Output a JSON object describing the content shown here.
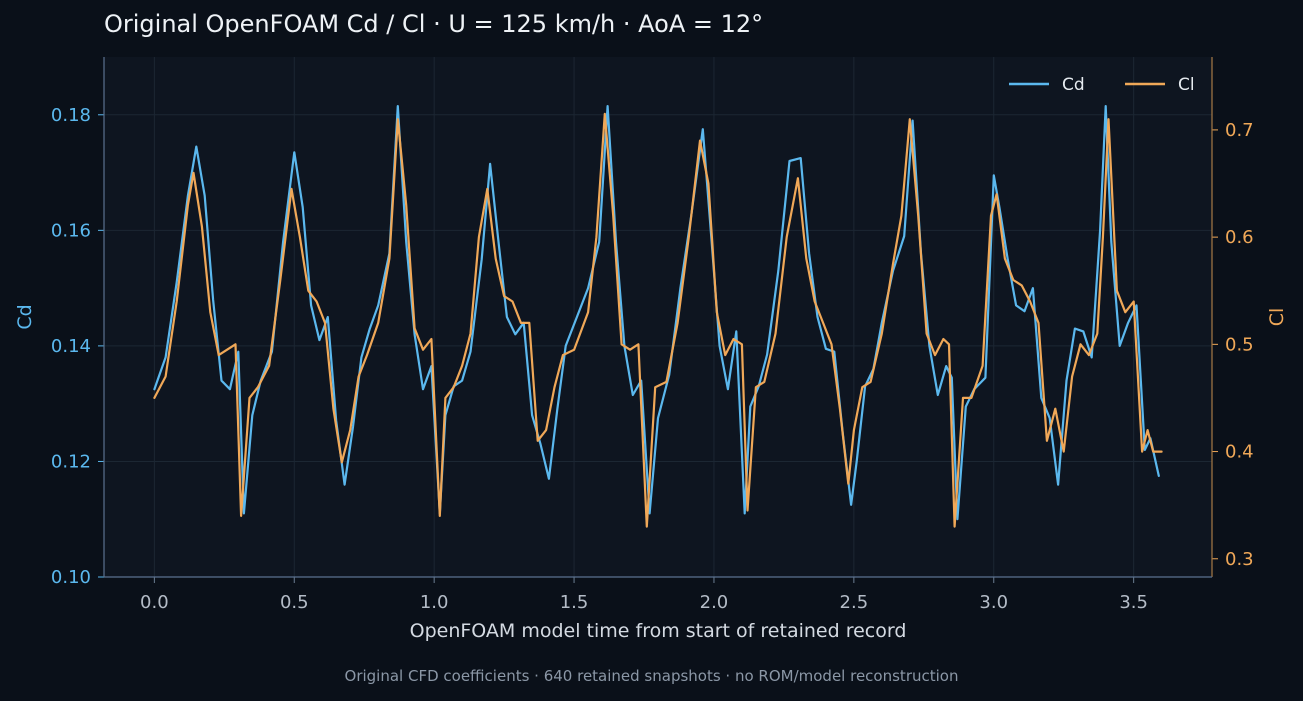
{
  "title": "Original OpenFOAM Cd / Cl · U = 125 km/h · AoA = 12°",
  "footnote": "Original CFD coefficients · 640 retained snapshots · no ROM/model reconstruction",
  "colors": {
    "background": "#0a1019",
    "plot_background": "#0e1520",
    "grid": "#1c2733",
    "cd": "#5bb8ee",
    "cl": "#f0a858",
    "text": "#eef2f6",
    "muted": "#8b97a6",
    "tick_x": "#b4bcc7"
  },
  "chart_data": {
    "type": "line",
    "title": "Original OpenFOAM Cd / Cl · U = 125 km/h · AoA = 12°",
    "xlabel": "OpenFOAM model time from start of retained record",
    "ylabel_left": "Cd",
    "ylabel_right": "Cl",
    "xlim": [
      -0.18,
      3.78
    ],
    "ylim_left": [
      0.1,
      0.19
    ],
    "ylim_right": [
      0.283,
      0.768
    ],
    "x_ticks": [
      "0.0",
      "0.5",
      "1.0",
      "1.5",
      "2.0",
      "2.5",
      "3.0",
      "3.5"
    ],
    "y_ticks_left": [
      "0.10",
      "0.12",
      "0.14",
      "0.16",
      "0.18"
    ],
    "y_ticks_right": [
      "0.3",
      "0.4",
      "0.5",
      "0.6",
      "0.7"
    ],
    "grid": true,
    "legend": "top-right",
    "series": [
      {
        "name": "Cd",
        "axis": "left",
        "x": [
          0.0,
          0.04,
          0.08,
          0.12,
          0.15,
          0.18,
          0.21,
          0.24,
          0.27,
          0.3,
          0.32,
          0.35,
          0.38,
          0.42,
          0.46,
          0.5,
          0.53,
          0.56,
          0.59,
          0.62,
          0.65,
          0.68,
          0.71,
          0.74,
          0.77,
          0.8,
          0.84,
          0.87,
          0.9,
          0.93,
          0.96,
          0.99,
          1.02,
          1.04,
          1.07,
          1.1,
          1.13,
          1.17,
          1.2,
          1.23,
          1.26,
          1.29,
          1.32,
          1.35,
          1.38,
          1.41,
          1.44,
          1.47,
          1.51,
          1.55,
          1.59,
          1.62,
          1.65,
          1.68,
          1.71,
          1.74,
          1.77,
          1.8,
          1.84,
          1.88,
          1.92,
          1.96,
          1.99,
          2.02,
          2.05,
          2.08,
          2.11,
          2.13,
          2.16,
          2.19,
          2.23,
          2.27,
          2.31,
          2.34,
          2.37,
          2.4,
          2.43,
          2.46,
          2.49,
          2.51,
          2.54,
          2.57,
          2.6,
          2.64,
          2.68,
          2.71,
          2.74,
          2.77,
          2.8,
          2.83,
          2.85,
          2.87,
          2.9,
          2.93,
          2.97,
          3.0,
          3.02,
          3.05,
          3.08,
          3.11,
          3.14,
          3.17,
          3.2,
          3.23,
          3.26,
          3.29,
          3.32,
          3.35,
          3.38,
          3.4,
          3.42,
          3.45,
          3.48,
          3.51,
          3.54,
          3.56,
          3.59
        ],
        "y": [
          0.1325,
          0.138,
          0.151,
          0.166,
          0.1745,
          0.166,
          0.148,
          0.134,
          0.1325,
          0.139,
          0.111,
          0.128,
          0.134,
          0.139,
          0.158,
          0.1735,
          0.164,
          0.147,
          0.141,
          0.145,
          0.127,
          0.116,
          0.126,
          0.138,
          0.143,
          0.147,
          0.156,
          0.1815,
          0.158,
          0.142,
          0.1325,
          0.1365,
          0.111,
          0.128,
          0.133,
          0.134,
          0.139,
          0.155,
          0.1715,
          0.158,
          0.145,
          0.142,
          0.144,
          0.128,
          0.123,
          0.117,
          0.129,
          0.14,
          0.145,
          0.15,
          0.158,
          0.1815,
          0.158,
          0.14,
          0.1315,
          0.134,
          0.111,
          0.1275,
          0.135,
          0.15,
          0.163,
          0.1775,
          0.159,
          0.14,
          0.1325,
          0.1425,
          0.111,
          0.1295,
          0.133,
          0.1385,
          0.153,
          0.172,
          0.1725,
          0.156,
          0.145,
          0.1395,
          0.139,
          0.125,
          0.1125,
          0.12,
          0.133,
          0.136,
          0.144,
          0.153,
          0.159,
          0.179,
          0.156,
          0.14,
          0.1315,
          0.1365,
          0.1345,
          0.11,
          0.1295,
          0.1325,
          0.1345,
          0.1695,
          0.164,
          0.155,
          0.147,
          0.146,
          0.15,
          0.131,
          0.1275,
          0.116,
          0.134,
          0.143,
          0.1425,
          0.138,
          0.16,
          0.1815,
          0.158,
          0.14,
          0.144,
          0.147,
          0.122,
          0.124,
          0.1175
        ]
      },
      {
        "name": "Cl",
        "axis": "right",
        "x": [
          0.0,
          0.04,
          0.08,
          0.12,
          0.14,
          0.17,
          0.2,
          0.23,
          0.26,
          0.29,
          0.31,
          0.34,
          0.37,
          0.41,
          0.45,
          0.49,
          0.52,
          0.55,
          0.58,
          0.61,
          0.64,
          0.67,
          0.7,
          0.73,
          0.76,
          0.8,
          0.84,
          0.87,
          0.9,
          0.93,
          0.96,
          0.99,
          1.02,
          1.04,
          1.07,
          1.1,
          1.13,
          1.16,
          1.19,
          1.22,
          1.25,
          1.28,
          1.31,
          1.34,
          1.37,
          1.4,
          1.43,
          1.46,
          1.5,
          1.55,
          1.58,
          1.61,
          1.64,
          1.67,
          1.7,
          1.73,
          1.76,
          1.79,
          1.83,
          1.87,
          1.91,
          1.95,
          1.98,
          2.01,
          2.04,
          2.07,
          2.1,
          2.12,
          2.15,
          2.18,
          2.22,
          2.26,
          2.3,
          2.33,
          2.36,
          2.39,
          2.42,
          2.45,
          2.48,
          2.5,
          2.53,
          2.56,
          2.6,
          2.64,
          2.67,
          2.7,
          2.73,
          2.76,
          2.79,
          2.82,
          2.84,
          2.86,
          2.89,
          2.92,
          2.96,
          2.99,
          3.01,
          3.04,
          3.07,
          3.1,
          3.13,
          3.16,
          3.19,
          3.22,
          3.25,
          3.28,
          3.31,
          3.34,
          3.37,
          3.39,
          3.41,
          3.44,
          3.47,
          3.5,
          3.53,
          3.55,
          3.57,
          3.6
        ],
        "y": [
          0.45,
          0.47,
          0.54,
          0.63,
          0.66,
          0.61,
          0.53,
          0.49,
          0.495,
          0.5,
          0.34,
          0.45,
          0.46,
          0.48,
          0.56,
          0.645,
          0.6,
          0.55,
          0.54,
          0.52,
          0.44,
          0.39,
          0.42,
          0.47,
          0.49,
          0.52,
          0.58,
          0.71,
          0.63,
          0.515,
          0.495,
          0.505,
          0.34,
          0.45,
          0.46,
          0.48,
          0.51,
          0.6,
          0.645,
          0.58,
          0.545,
          0.54,
          0.52,
          0.52,
          0.41,
          0.42,
          0.46,
          0.49,
          0.495,
          0.53,
          0.6,
          0.715,
          0.62,
          0.5,
          0.495,
          0.5,
          0.33,
          0.46,
          0.465,
          0.52,
          0.6,
          0.69,
          0.65,
          0.53,
          0.49,
          0.505,
          0.5,
          0.345,
          0.46,
          0.465,
          0.51,
          0.6,
          0.655,
          0.58,
          0.54,
          0.52,
          0.5,
          0.44,
          0.37,
          0.42,
          0.46,
          0.465,
          0.51,
          0.575,
          0.62,
          0.71,
          0.62,
          0.51,
          0.49,
          0.505,
          0.5,
          0.33,
          0.45,
          0.45,
          0.48,
          0.62,
          0.64,
          0.58,
          0.56,
          0.555,
          0.54,
          0.52,
          0.41,
          0.44,
          0.4,
          0.47,
          0.5,
          0.49,
          0.51,
          0.6,
          0.71,
          0.55,
          0.53,
          0.54,
          0.4,
          0.42,
          0.4,
          0.4
        ]
      }
    ]
  }
}
